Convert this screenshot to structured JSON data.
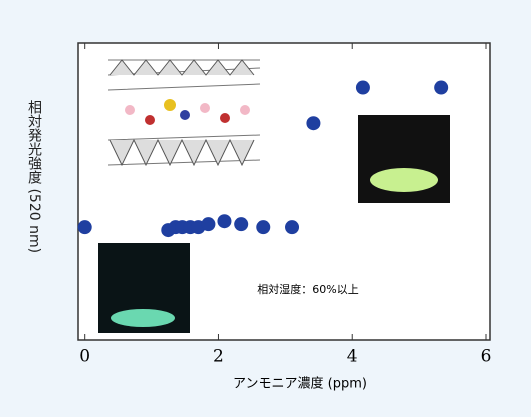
{
  "chart_data": {
    "type": "scatter",
    "xlabel": "アンモニア濃度 (ppm)",
    "ylabel": "相対発光強度 (520 nm)",
    "annotation": "相対湿度：60%以上",
    "x": [
      0,
      1.25,
      1.36,
      1.46,
      1.58,
      1.7,
      1.85,
      2.09,
      2.34,
      2.67,
      3.1,
      3.42,
      4.16,
      5.33
    ],
    "values": [
      0.38,
      0.37,
      0.38,
      0.38,
      0.38,
      0.38,
      0.39,
      0.4,
      0.39,
      0.38,
      0.38,
      0.73,
      0.85,
      0.85
    ],
    "color": "#1f3fa0",
    "xlim": [
      -0.1,
      6.06
    ],
    "xticks": [
      0,
      2,
      4,
      6
    ],
    "ylim": [
      0,
      1
    ]
  }
}
